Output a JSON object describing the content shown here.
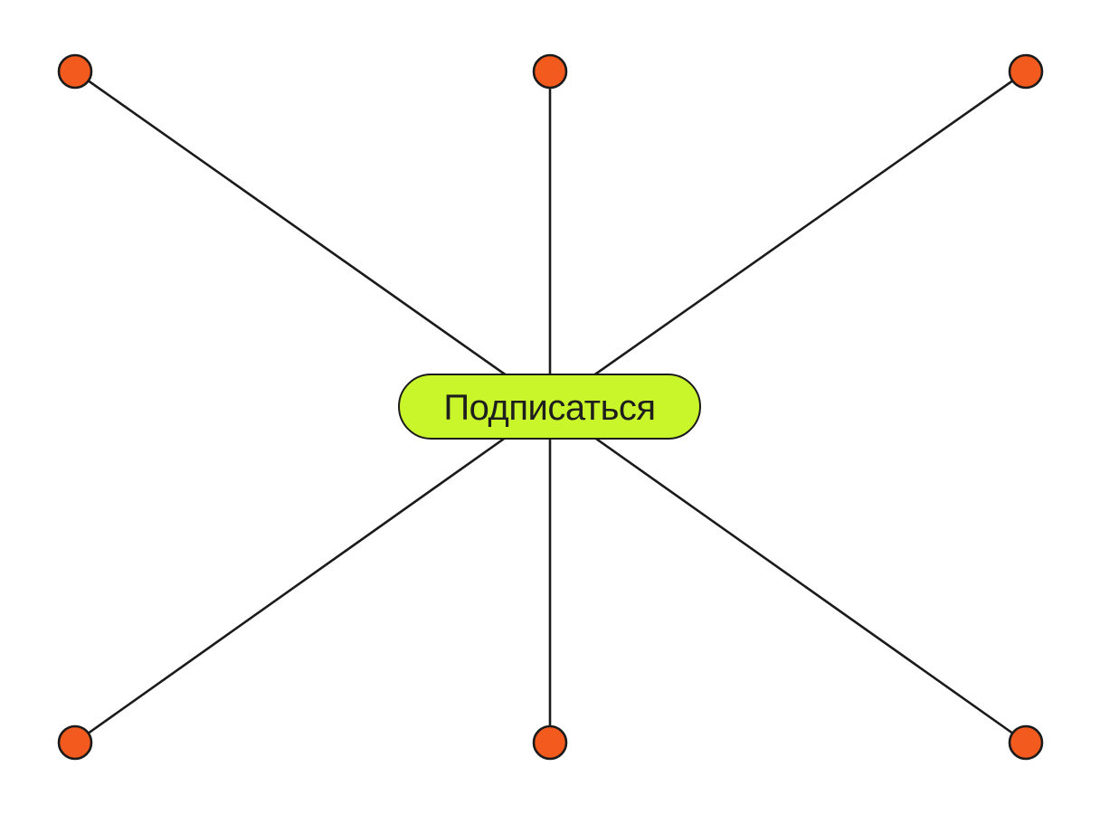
{
  "colors": {
    "background": "#ffffff",
    "line": "#1b1b1b",
    "node_fill": "#f25a1e",
    "button_fill": "#c9f52b",
    "button_text": "#1e1e1e"
  },
  "button": {
    "label": "Подписаться"
  },
  "nodes": [
    {
      "id": "top-left",
      "icon": "circle-dot"
    },
    {
      "id": "top-center",
      "icon": "circle-dot"
    },
    {
      "id": "top-right",
      "icon": "circle-dot"
    },
    {
      "id": "bottom-left",
      "icon": "circle-dot"
    },
    {
      "id": "bottom-center",
      "icon": "circle-dot"
    },
    {
      "id": "bottom-right",
      "icon": "circle-dot"
    }
  ]
}
